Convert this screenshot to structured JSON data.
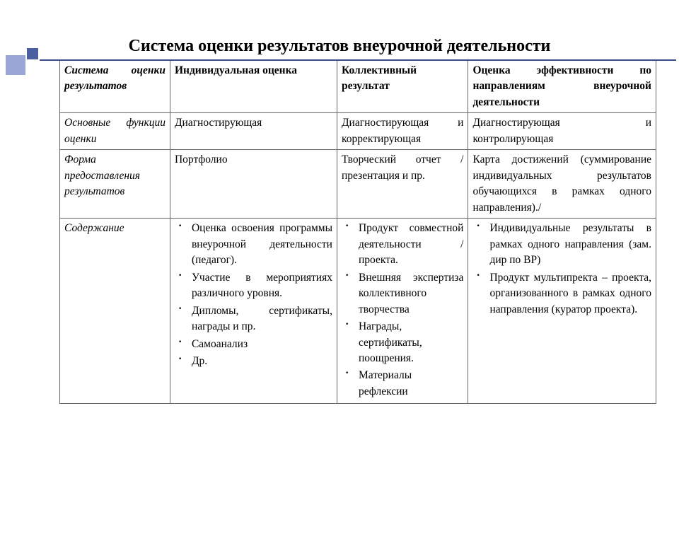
{
  "title": "Система оценки  результатов внеурочной деятельности",
  "table": {
    "col_widths": [
      "18.5%",
      "28%",
      "22%",
      "31.5%"
    ],
    "header": {
      "c0": "Система оценки результатов",
      "c1": "Индивидуальная  оценка",
      "c2": "Коллективный результат",
      "c3": "Оценка эффективности по направлениям внеурочной деятельности"
    },
    "row1": {
      "c0": "Основные функции оценки",
      "c1": "Диагностирующая",
      "c2": "Диагностирующая и корректирующая",
      "c3": "Диагностирующая и контролирующая"
    },
    "row2": {
      "c0": "Форма предоставления результатов",
      "c1": "Портфолио",
      "c2": "Творческий отчет / презентация и пр.",
      "c3": "Карта достижений (суммирование индивидуальных результатов обучающихся в рамках одного направления)./"
    },
    "row3": {
      "c0": "Содержание",
      "c1_items": [
        "Оценка освоения программы внеурочной деятельности (педагог).",
        "Участие в мероприятиях различного уровня.",
        "Дипломы, сертификаты, награды и пр.",
        "Самоанализ",
        "Др."
      ],
      "c2_items": [
        "Продукт совместной деятельности / проекта.",
        "Внешняя экспертиза коллективного творчества",
        "Награды, сертификаты, поощрения.",
        "Материалы рефлексии"
      ],
      "c3_items": [
        "Индивидуальные результаты в рамках одного направления (зам. дир по ВР)",
        " Продукт мультипректа – проекта, организованного в рамках одного направления (куратор проекта)."
      ]
    }
  },
  "colors": {
    "square_light": "#9aa6d6",
    "square_dark": "#4a5ea0",
    "rule": "#3b4a8a",
    "border": "#666666",
    "text": "#000000",
    "bg": "#ffffff"
  }
}
